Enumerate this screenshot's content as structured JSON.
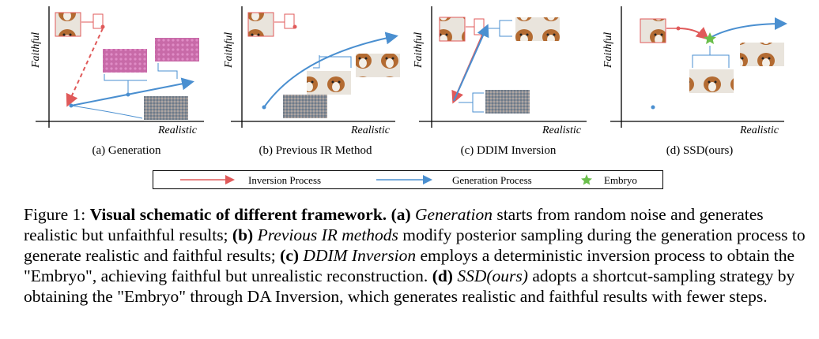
{
  "panels": [
    {
      "id": "a",
      "caption": "(a) Generation",
      "xlabel": "Realistic",
      "ylabel": "Faithful"
    },
    {
      "id": "b",
      "caption": "(b) Previous IR Method",
      "xlabel": "Realistic",
      "ylabel": "Faithful"
    },
    {
      "id": "c",
      "caption": "(c) DDIM Inversion",
      "xlabel": "Realistic",
      "ylabel": "Faithful"
    },
    {
      "id": "d",
      "caption": "(d) SSD(ours)",
      "xlabel": "Realistic",
      "ylabel": "Faithful"
    }
  ],
  "legend": {
    "inversion": "Inversion Process",
    "generation": "Generation Process",
    "embryo": "Embryo"
  },
  "colors": {
    "inversion": "#e05a5a",
    "generation": "#4a8fd0",
    "embryo": "#6abf4b"
  },
  "caption": {
    "figure_label": "Figure 1:",
    "title": "Visual schematic of different framework.",
    "a_label": "(a)",
    "a_name": "Generation",
    "a_text": "starts from random noise and generates realistic but unfaithful results;",
    "b_label": "(b)",
    "b_name": "Previous IR methods",
    "b_text": "modify posterior sampling during the generation process to generate realistic and faithful results;",
    "c_label": "(c)",
    "c_name": "DDIM Inversion",
    "c_text": "employs a deterministic inversion process to obtain the \"Embryo\", achieving faithful but unrealistic reconstruction.",
    "d_label": "(d)",
    "d_name": "SSD(ours)",
    "d_text": "adopts a shortcut-sampling strategy by obtaining the \"Embryo\" through DA Inversion, which generates realistic and faithful results with fewer steps."
  }
}
